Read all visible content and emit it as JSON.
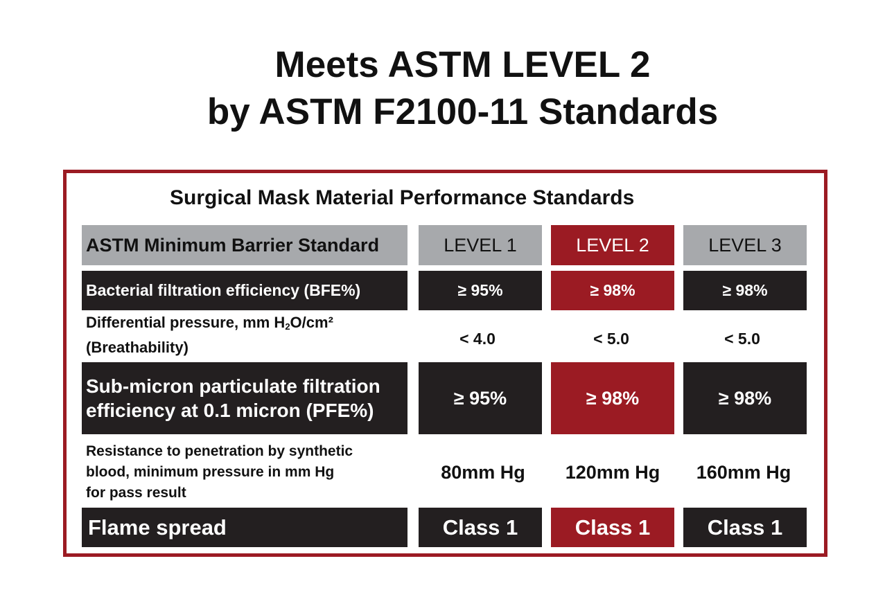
{
  "headline": {
    "line1": "Meets ASTM LEVEL 2",
    "line2": "by ASTM F2100-11 Standards"
  },
  "table": {
    "title": "Surgical Mask Material Performance Standards",
    "header": {
      "label": "ASTM Minimum Barrier Standard",
      "level1": "LEVEL 1",
      "level2": "LEVEL 2",
      "level3": "LEVEL 3"
    },
    "rows": [
      {
        "label": "Bacterial filtration efficiency (BFE%)",
        "level1": "≥ 95%",
        "level2": "≥ 98%",
        "level3": "≥ 98%"
      },
      {
        "label_prefix": "Differential pressure, mm H",
        "label_sub": "2",
        "label_suffix": "O/cm²",
        "label_line2": "(Breathability)",
        "level1": "< 4.0",
        "level2": "< 5.0",
        "level3": "< 5.0"
      },
      {
        "label_line1": "Sub-micron particulate filtration",
        "label_line2": "efficiency at 0.1 micron (PFE%)",
        "level1": "≥ 95%",
        "level2": "≥ 98%",
        "level3": "≥ 98%"
      },
      {
        "label_line1": "Resistance to penetration by synthetic",
        "label_line2": "blood, minimum pressure in mm Hg",
        "label_line3": "for pass result",
        "level1": "80mm Hg",
        "level2": "120mm Hg",
        "level3": "160mm Hg"
      },
      {
        "label": "Flame spread",
        "level1": "Class 1",
        "level2": "Class 1",
        "level3": "Class 1"
      }
    ]
  },
  "colors": {
    "accent_red": "#9b1b23",
    "dark": "#231f20",
    "gray": "#a7a9ac"
  }
}
